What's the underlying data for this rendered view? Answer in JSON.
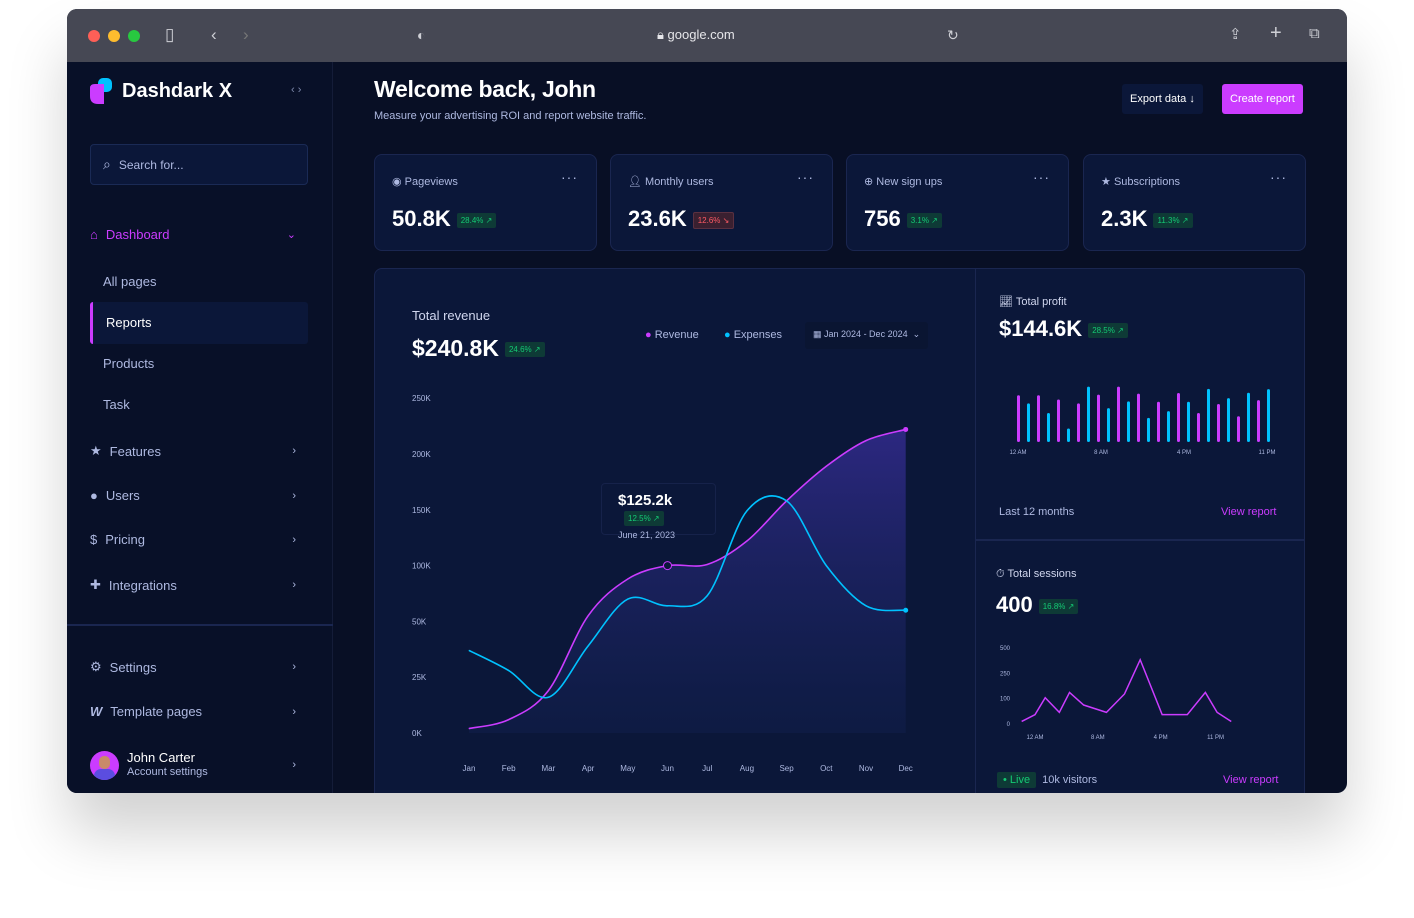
{
  "browser": {
    "url": "google.com"
  },
  "sidebar": {
    "brand": "Dashdark X",
    "search_placeholder": "Search for...",
    "dashboard": "Dashboard",
    "sub_items": [
      "All pages",
      "Reports",
      "Products",
      "Task"
    ],
    "active_sub": "Reports",
    "items": [
      "Features",
      "Users",
      "Pricing",
      "Integrations"
    ],
    "bottom_items": [
      "Settings",
      "Template pages"
    ],
    "user": {
      "name": "John Carter",
      "subtitle": "Account settings"
    }
  },
  "header": {
    "title": "Welcome back, John",
    "subtitle": "Measure your advertising ROI and report website traffic.",
    "export": "Export data",
    "create": "Create report"
  },
  "kpis": [
    {
      "label": "Pageviews",
      "value": "50.8K",
      "change": "28.4%",
      "trend": "up"
    },
    {
      "label": "Monthly users",
      "value": "23.6K",
      "change": "12.6%",
      "trend": "down"
    },
    {
      "label": "New sign ups",
      "value": "756",
      "change": "3.1%",
      "trend": "up"
    },
    {
      "label": "Subscriptions",
      "value": "2.3K",
      "change": "11.3%",
      "trend": "up"
    }
  ],
  "revenue": {
    "title": "Total revenue",
    "value": "$240.8K",
    "change": "24.6%",
    "legend": [
      "Revenue",
      "Expenses"
    ],
    "date_range": "Jan 2024 - Dec 2024",
    "tooltip": {
      "value": "$125.2k",
      "change": "12.5%",
      "date": "June 21, 2023"
    }
  },
  "profit": {
    "title": "Total profit",
    "value": "$144.6K",
    "change": "28.5%",
    "footer": "Last 12 months",
    "link": "View report"
  },
  "sessions": {
    "title": "Total sessions",
    "value": "400",
    "change": "16.8%",
    "live": "Live",
    "visitors": "10k visitors",
    "link": "View report"
  },
  "colors": {
    "accent": "#cb3cff",
    "cyan": "#00c2ff",
    "bg": "#081028",
    "card": "#0b1739",
    "green": "#14ca74",
    "red": "#ff5a65"
  },
  "chart_data": [
    {
      "type": "line",
      "categories": [
        "Jan",
        "Feb",
        "Mar",
        "Apr",
        "May",
        "Jun",
        "Jul",
        "Aug",
        "Sep",
        "Oct",
        "Nov",
        "Dec"
      ],
      "y_ticks": [
        "0K",
        "25K",
        "50K",
        "100K",
        "150K",
        "200K",
        "250K"
      ],
      "y_tick_values": [
        0,
        25,
        50,
        100,
        150,
        200,
        250
      ],
      "series": [
        {
          "name": "Revenue",
          "color": "#cb3cff",
          "values": [
            2,
            6,
            19,
            55,
            88,
            100,
            101,
            122,
            158,
            189,
            212,
            222
          ]
        },
        {
          "name": "Expenses",
          "color": "#00c2ff",
          "values": [
            37,
            28,
            16,
            39,
            70,
            64,
            73,
            149,
            158,
            100,
            64,
            60
          ]
        }
      ],
      "legend": "top-right",
      "grid": false
    },
    {
      "type": "bar",
      "x_ticks": [
        "12 AM",
        "8 AM",
        "4 PM",
        "11 PM"
      ],
      "colors": [
        "#cb3cff",
        "#00c2ff"
      ],
      "values": [
        145,
        120,
        145,
        90,
        132,
        42,
        120,
        172,
        147,
        105,
        172,
        126,
        150,
        75,
        125,
        96,
        152,
        125,
        90,
        165,
        118,
        136,
        80,
        153,
        130,
        164
      ]
    },
    {
      "type": "line",
      "x_ticks": [
        "12 AM",
        "8 AM",
        "4 PM",
        "11 PM"
      ],
      "x_tick_values": [
        0,
        8,
        16,
        23
      ],
      "y_ticks": [
        "0",
        "100",
        "250",
        "500"
      ],
      "y_tick_values": [
        0,
        100,
        250,
        500
      ],
      "x": [
        -1.7,
        0,
        1.3,
        3.1,
        4.4,
        6.2,
        9.1,
        11.4,
        13.4,
        16.2,
        19.4,
        21.7,
        23.2,
        25
      ],
      "values": [
        10,
        37,
        106,
        46,
        137,
        75,
        46,
        128,
        385,
        37,
        37,
        137,
        46,
        10
      ],
      "color": "#cb3cff"
    }
  ]
}
